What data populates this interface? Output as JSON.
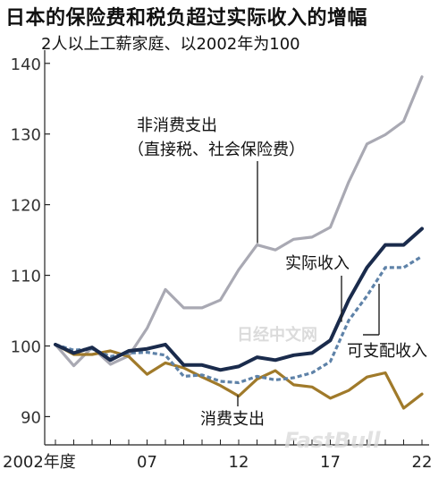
{
  "chart_data": {
    "type": "line",
    "title": "日本的保险费和税负超过实际收入的增幅",
    "subtitle": "2人以上工薪家庭、以2002年为100",
    "x_tick_labels": [
      {
        "year": 2002,
        "label": "2002年度"
      },
      {
        "year": 2007,
        "label": "07"
      },
      {
        "year": 2012,
        "label": "12"
      },
      {
        "year": 2017,
        "label": "17"
      },
      {
        "year": 2022,
        "label": "22"
      }
    ],
    "y_ticks": [
      90,
      100,
      110,
      120,
      130,
      140
    ],
    "xlim": [
      2002,
      2022
    ],
    "ylim": [
      86,
      142
    ],
    "grid": false,
    "series": [
      {
        "name": "非消费支出（直接税、社会保险费）",
        "label_lines": [
          "非消费支出",
          "（直接税、社会保险费）"
        ],
        "color": "#a9a9b3",
        "dashed": false,
        "points": [
          [
            2002,
            100.2
          ],
          [
            2003,
            97.2
          ],
          [
            2004,
            99.8
          ],
          [
            2005,
            97.4
          ],
          [
            2006,
            98.6
          ],
          [
            2007,
            102.5
          ],
          [
            2008,
            108.0
          ],
          [
            2009,
            105.4
          ],
          [
            2010,
            105.4
          ],
          [
            2011,
            106.5
          ],
          [
            2012,
            110.8
          ],
          [
            2013,
            114.3
          ],
          [
            2014,
            113.6
          ],
          [
            2015,
            115.1
          ],
          [
            2016,
            115.4
          ],
          [
            2017,
            116.8
          ],
          [
            2018,
            123.2
          ],
          [
            2019,
            128.6
          ],
          [
            2020,
            129.9
          ],
          [
            2021,
            131.8
          ],
          [
            2022,
            138.1
          ]
        ]
      },
      {
        "name": "实际收入",
        "label_lines": [
          "实际收入"
        ],
        "color": "#1a2b4c",
        "dashed": false,
        "points": [
          [
            2002,
            100.2
          ],
          [
            2003,
            99.0
          ],
          [
            2004,
            99.8
          ],
          [
            2005,
            98.0
          ],
          [
            2006,
            99.3
          ],
          [
            2007,
            99.6
          ],
          [
            2008,
            100.2
          ],
          [
            2009,
            97.3
          ],
          [
            2010,
            97.3
          ],
          [
            2011,
            96.6
          ],
          [
            2012,
            97.1
          ],
          [
            2013,
            98.4
          ],
          [
            2014,
            98.0
          ],
          [
            2015,
            98.7
          ],
          [
            2016,
            99.0
          ],
          [
            2017,
            100.8
          ],
          [
            2018,
            106.5
          ],
          [
            2019,
            111.1
          ],
          [
            2020,
            114.3
          ],
          [
            2021,
            114.3
          ],
          [
            2022,
            116.6
          ]
        ]
      },
      {
        "name": "可支配收入",
        "label_lines": [
          "可支配收入"
        ],
        "color": "#5e82a8",
        "dashed": true,
        "points": [
          [
            2002,
            100.2
          ],
          [
            2003,
            99.4
          ],
          [
            2004,
            99.6
          ],
          [
            2005,
            98.5
          ],
          [
            2006,
            99.0
          ],
          [
            2007,
            99.1
          ],
          [
            2008,
            98.7
          ],
          [
            2009,
            95.7
          ],
          [
            2010,
            95.9
          ],
          [
            2011,
            95.0
          ],
          [
            2012,
            94.8
          ],
          [
            2013,
            95.7
          ],
          [
            2014,
            95.2
          ],
          [
            2015,
            95.5
          ],
          [
            2016,
            96.2
          ],
          [
            2017,
            97.8
          ],
          [
            2018,
            103.6
          ],
          [
            2019,
            107.1
          ],
          [
            2020,
            111.1
          ],
          [
            2021,
            111.1
          ],
          [
            2022,
            112.7
          ]
        ]
      },
      {
        "name": "消费支出",
        "label_lines": [
          "消费支出"
        ],
        "color": "#a07a2a",
        "dashed": false,
        "points": [
          [
            2002,
            100.2
          ],
          [
            2003,
            98.8
          ],
          [
            2004,
            98.8
          ],
          [
            2005,
            99.3
          ],
          [
            2006,
            98.5
          ],
          [
            2007,
            96.0
          ],
          [
            2008,
            97.6
          ],
          [
            2009,
            96.9
          ],
          [
            2010,
            95.6
          ],
          [
            2011,
            94.4
          ],
          [
            2012,
            92.9
          ],
          [
            2013,
            95.3
          ],
          [
            2014,
            96.5
          ],
          [
            2015,
            94.5
          ],
          [
            2016,
            94.2
          ],
          [
            2017,
            92.6
          ],
          [
            2018,
            93.7
          ],
          [
            2019,
            95.6
          ],
          [
            2020,
            96.2
          ],
          [
            2021,
            91.2
          ],
          [
            2022,
            93.2
          ]
        ]
      }
    ]
  },
  "watermarks": [
    "日经中文网",
    "FastBull"
  ]
}
